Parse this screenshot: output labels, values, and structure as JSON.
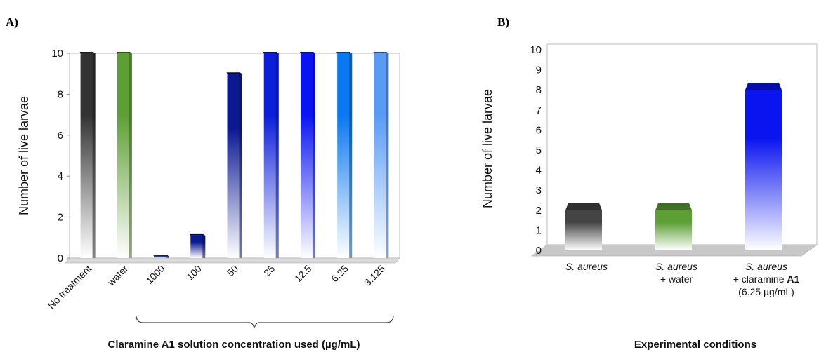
{
  "panels": {
    "a_label": "A)",
    "b_label": "B)"
  },
  "chart_data": [
    {
      "type": "bar",
      "panel": "A)",
      "categories": [
        "No treatment",
        "water",
        "1000",
        "100",
        "50",
        "25",
        "12.5",
        "6.25",
        "3.125"
      ],
      "values": [
        10,
        10,
        0.1,
        1.1,
        9,
        10,
        10,
        10,
        10
      ],
      "colors": [
        "#333333",
        "#5e9f35",
        "#1a3c9e",
        "#0d1a8f",
        "#0d1a8f",
        "#0b1ed8",
        "#0a14f0",
        "#0a78f0",
        "#5a9af5"
      ],
      "ylabel": "Number of live larvae",
      "xlabel": "Claramine A1 solution concentration used (µg/mL)",
      "ylim": [
        0,
        10
      ],
      "yticks": [
        0,
        2,
        4,
        6,
        8,
        10
      ],
      "grid": false
    },
    {
      "type": "bar",
      "panel": "B)",
      "categories": [
        [
          "S. aureus"
        ],
        [
          "S. aureus",
          "+ water"
        ],
        [
          "S. aureus",
          "+ claramine A1",
          "(6.25 µg/mL)"
        ]
      ],
      "values": [
        2,
        2,
        8
      ],
      "colors": [
        "#444444",
        "#5e9f35",
        "#0a14f0"
      ],
      "ylabel": "Number of live larvae",
      "xlabel": "Experimental conditions",
      "ylim": [
        0,
        10
      ],
      "yticks": [
        0,
        1,
        2,
        3,
        4,
        5,
        6,
        7,
        8,
        9,
        10
      ],
      "grid": false
    }
  ]
}
